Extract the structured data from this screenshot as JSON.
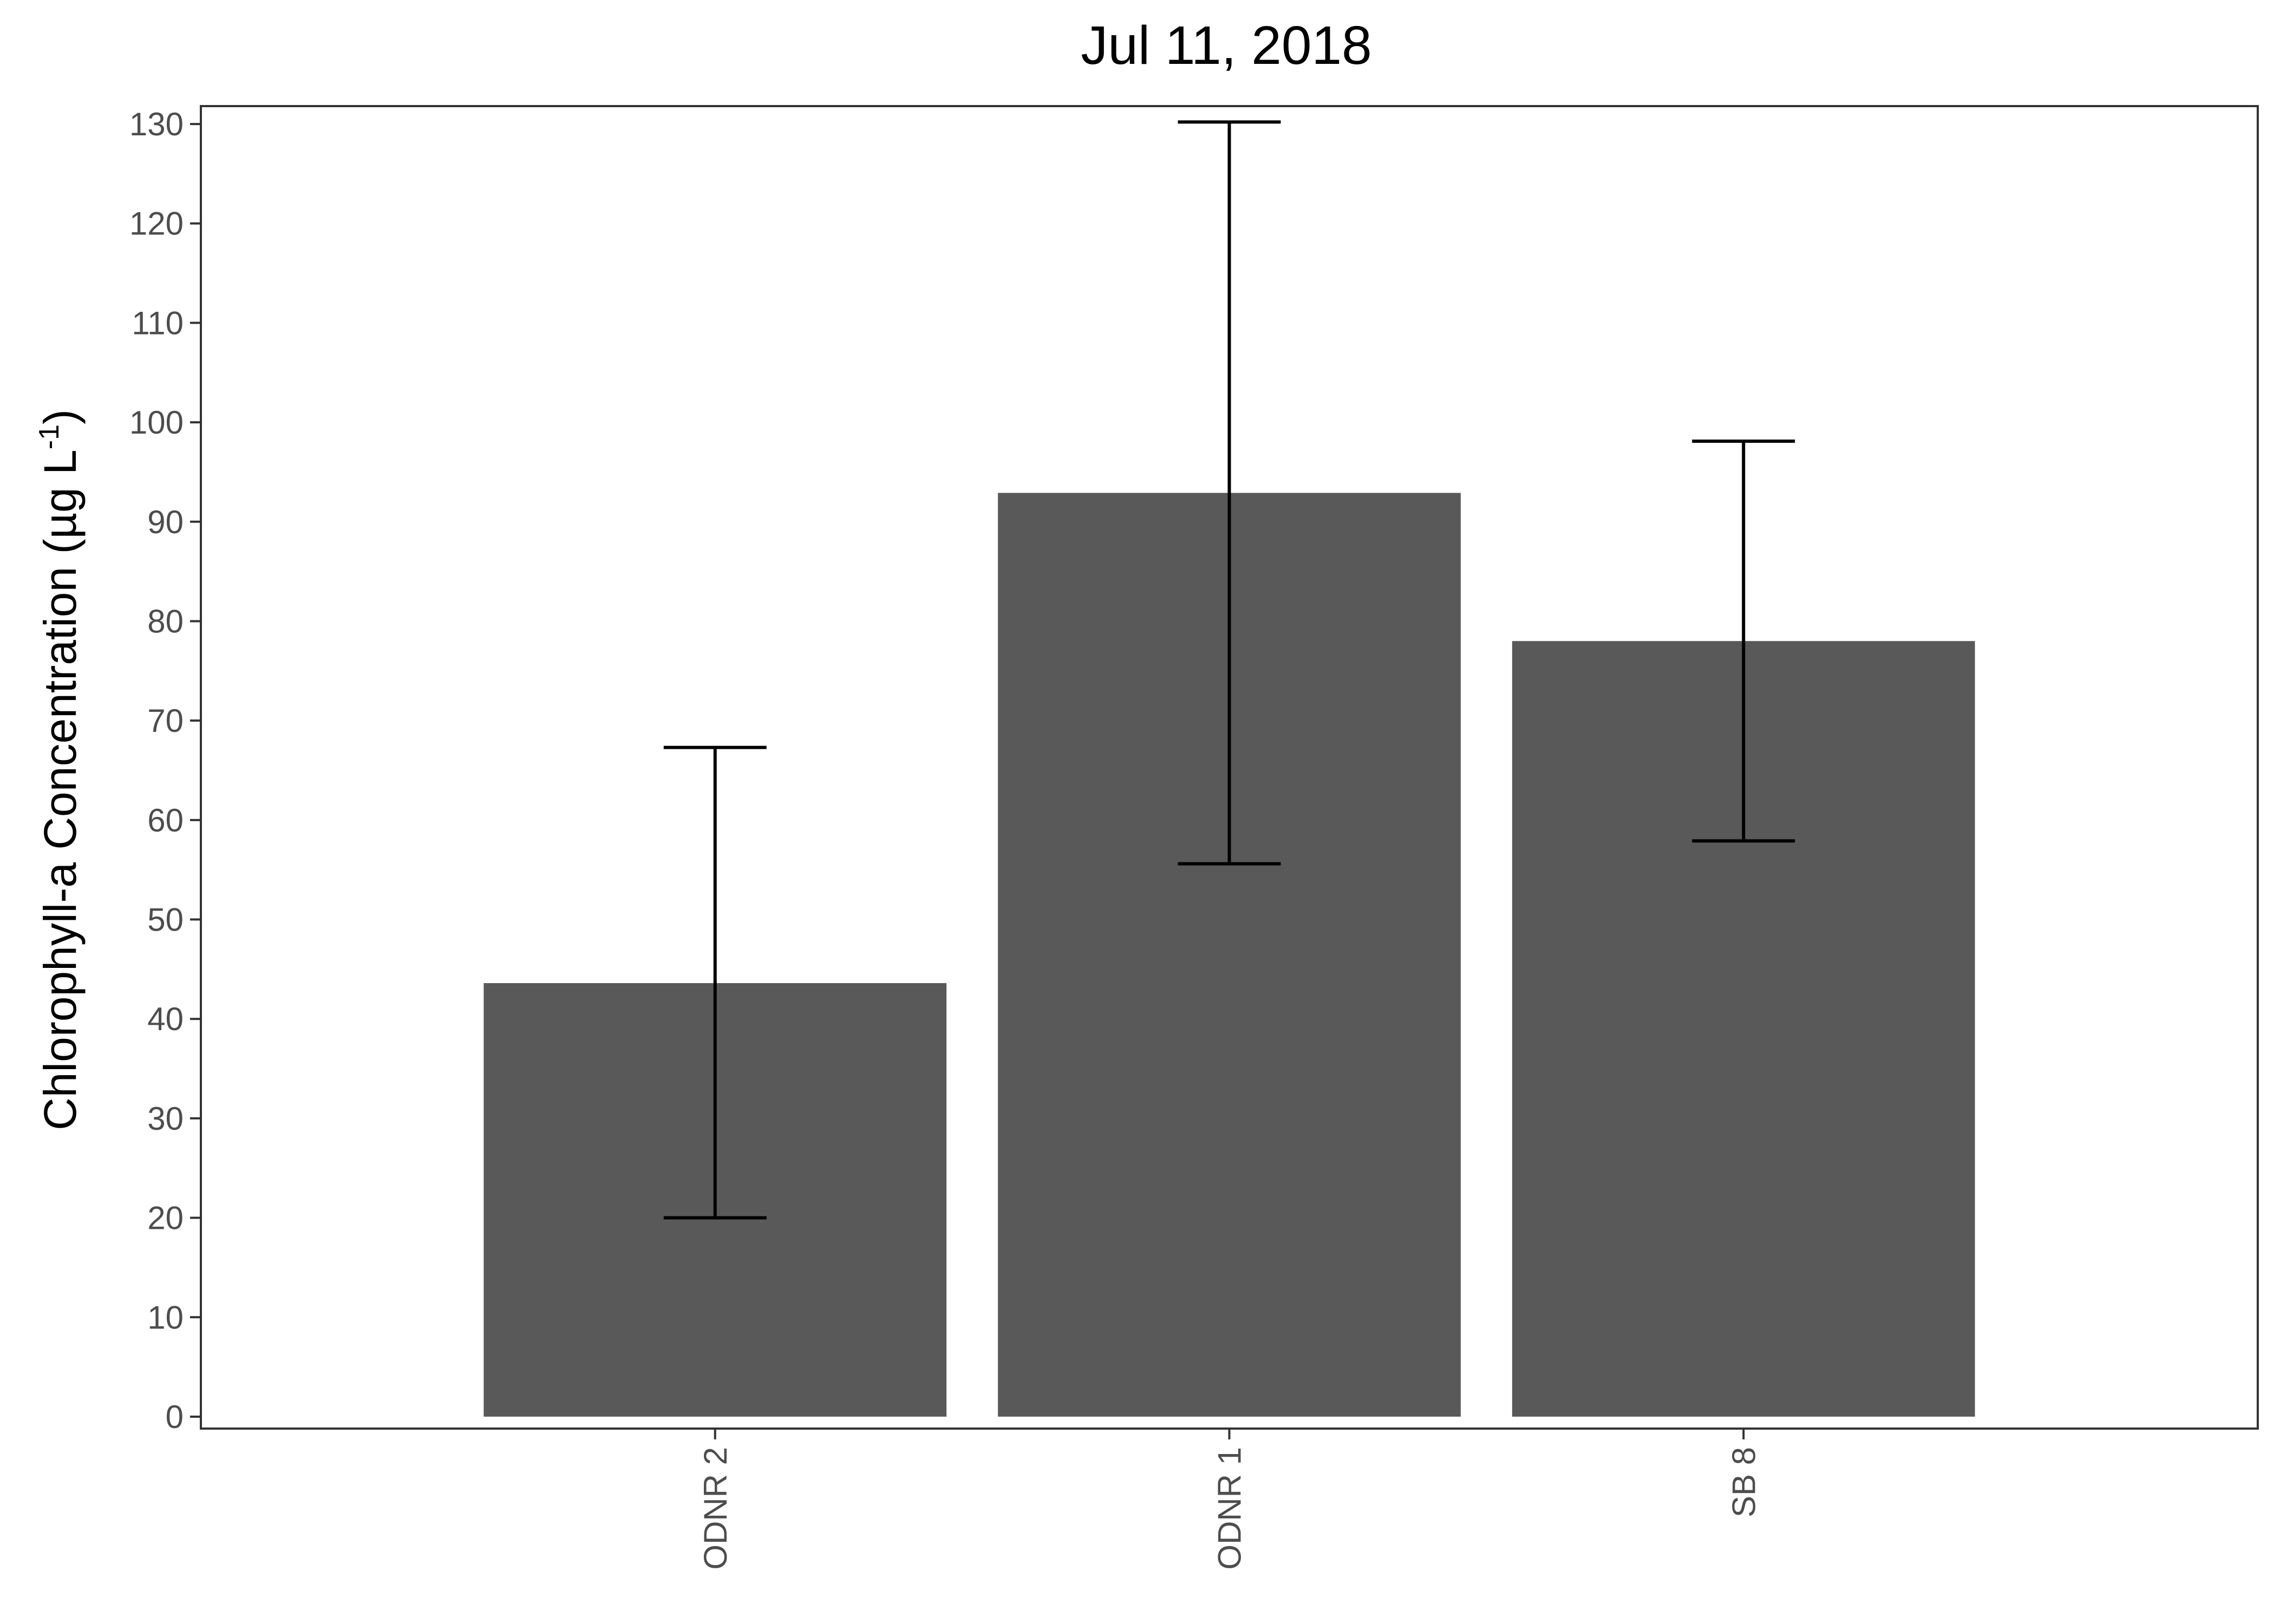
{
  "chart_data": {
    "type": "bar",
    "title": "Jul 11, 2018",
    "ylabel": "Chlorophyll-a Concentration",
    "ylabel_unit": "(µg L",
    "ylabel_unit_exp": "-1",
    "ylabel_unit_close": ")",
    "xlabel": "",
    "categories": [
      "ODNR 2",
      "ODNR 1",
      "SB 8"
    ],
    "values": [
      43.6,
      92.9,
      78.0
    ],
    "error_low": [
      20.0,
      55.6,
      57.9
    ],
    "error_high": [
      67.3,
      130.2,
      98.1
    ],
    "ylim": [
      -1.2,
      131.8
    ],
    "yticks": [
      0,
      10,
      20,
      30,
      40,
      50,
      60,
      70,
      80,
      90,
      100,
      110,
      120,
      130
    ],
    "xtick_rotation": -90,
    "grid": false,
    "legend": "none",
    "bar_color": "#595959",
    "errorbar_color": "#000000",
    "frame_color": "#333333"
  }
}
